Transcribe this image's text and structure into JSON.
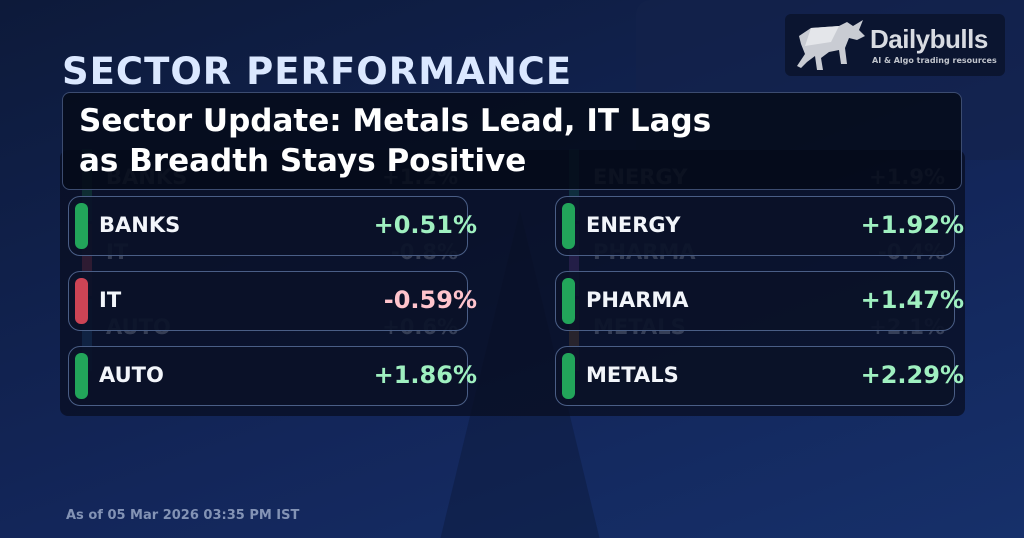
{
  "logo": {
    "brand": "Dailybulls",
    "tagline": "AI & Algo trading resources"
  },
  "title": "SECTOR PERFORMANCE",
  "headline": {
    "line1": "Sector Update: Metals Lead, IT Lags",
    "line2": "as Breadth Stays Positive"
  },
  "background_rows": {
    "left": [
      {
        "sector": "BANKS",
        "change": "+1.2%",
        "color": "#22a05a"
      },
      {
        "sector": "IT",
        "change": "-0.8%",
        "color": "#c0404f"
      },
      {
        "sector": "AUTO",
        "change": "+0.6%",
        "color": "#2a6aa0"
      }
    ],
    "right": [
      {
        "sector": "ENERGY",
        "change": "+1.9%",
        "color": "#1fa08a"
      },
      {
        "sector": "PHARMA",
        "change": "-0.4%",
        "color": "#8a4ab0"
      },
      {
        "sector": "METALS",
        "change": "+2.1%",
        "color": "#a06a2a"
      }
    ]
  },
  "sectors": {
    "left": [
      {
        "sector": "BANKS",
        "change": "+0.51%",
        "trend": "up"
      },
      {
        "sector": "IT",
        "change": "-0.59%",
        "trend": "down"
      },
      {
        "sector": "AUTO",
        "change": "+1.86%",
        "trend": "up"
      }
    ],
    "right": [
      {
        "sector": "ENERGY",
        "change": "+1.92%",
        "trend": "up"
      },
      {
        "sector": "PHARMA",
        "change": "+1.47%",
        "trend": "up"
      },
      {
        "sector": "METALS",
        "change": "+2.29%",
        "trend": "up"
      }
    ]
  },
  "colors": {
    "up_bar": "#22a55a",
    "down_bar": "#cc4455",
    "up_text": "#9ff0c0",
    "down_text": "#ffc4cc"
  },
  "footer": "As of 05 Mar 2026 03:35 PM IST"
}
